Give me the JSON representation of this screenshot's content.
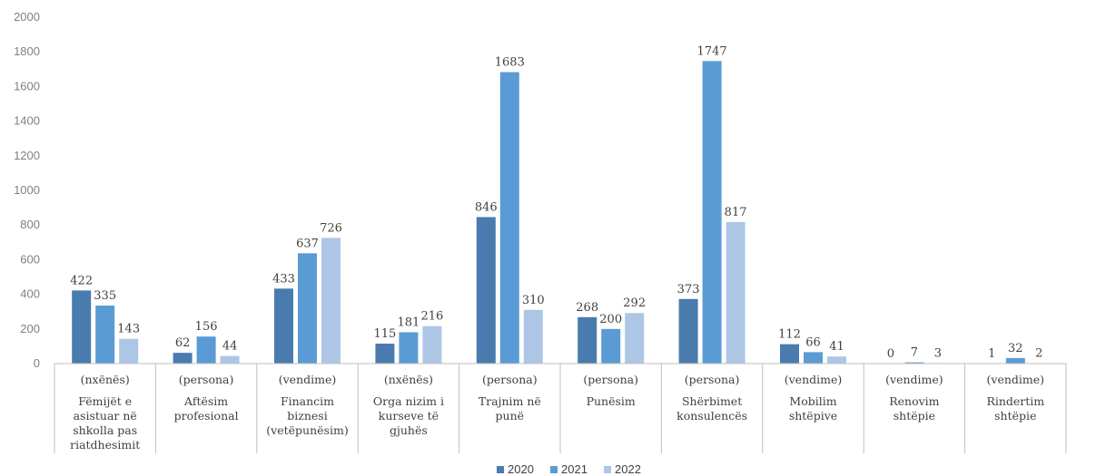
{
  "chart_data": {
    "type": "bar",
    "title": "",
    "xlabel": "",
    "ylabel": "",
    "ylim": [
      0,
      2000
    ],
    "yticks": [
      0,
      200,
      400,
      600,
      800,
      1000,
      1200,
      1400,
      1600,
      1800,
      2000
    ],
    "grid": false,
    "legend_position": "bottom",
    "categories": [
      {
        "unit": "(nxënës)",
        "lines": [
          "Fëmijët e",
          "asistuar në",
          "shkolla pas",
          "riatdhesimit"
        ]
      },
      {
        "unit": "(persona)",
        "lines": [
          "Aftësim",
          "profesional"
        ]
      },
      {
        "unit": "(vendime)",
        "lines": [
          "Financim",
          "biznesi",
          "(vetëpunësim)"
        ]
      },
      {
        "unit": "(nxënës)",
        "lines": [
          "Orga    nizim i",
          "kurseve të",
          "gjuhës"
        ]
      },
      {
        "unit": "(persona)",
        "lines": [
          "Trajnim në",
          "punë"
        ]
      },
      {
        "unit": "(persona)",
        "lines": [
          "Punësim"
        ]
      },
      {
        "unit": "(persona)",
        "lines": [
          "Shërbimet",
          "konsulencës"
        ]
      },
      {
        "unit": "(vendime)",
        "lines": [
          "Mobilim",
          "shtëpive"
        ]
      },
      {
        "unit": "(vendime)",
        "lines": [
          "Renovim",
          "shtëpie"
        ]
      },
      {
        "unit": "(vendime)",
        "lines": [
          "Rindertim",
          "shtëpie"
        ]
      }
    ],
    "series": [
      {
        "name": "2020",
        "color": "#4a7bae",
        "values": [
          422,
          62,
          433,
          115,
          846,
          268,
          373,
          112,
          0,
          1
        ]
      },
      {
        "name": "2021",
        "color": "#5b9bd5",
        "values": [
          335,
          156,
          637,
          181,
          1683,
          200,
          1747,
          66,
          7,
          32
        ]
      },
      {
        "name": "2022",
        "color": "#adc6e6",
        "values": [
          143,
          44,
          726,
          216,
          310,
          292,
          817,
          41,
          3,
          2
        ]
      }
    ]
  }
}
